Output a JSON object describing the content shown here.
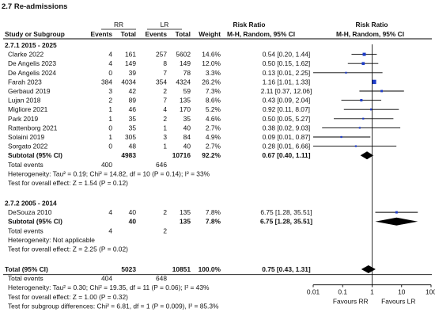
{
  "figure_title": "2.7 Re-admissions",
  "headers": {
    "rr": "RR",
    "lr": "LR",
    "rr_col": "Risk Ratio",
    "plot_col": "Risk Ratio",
    "study": "Study or Subgroup",
    "events": "Events",
    "total": "Total",
    "weight": "Weight",
    "method": "M-H, Random, 95% CI"
  },
  "chart_data": {
    "type": "forest",
    "title": "2.7 Re-admissions",
    "x_scale": "log",
    "x_ticks": [
      {
        "value": 0.01,
        "label": "0.01"
      },
      {
        "value": 0.1,
        "label": "0.1"
      },
      {
        "value": 1,
        "label": "1"
      },
      {
        "value": 10,
        "label": "10"
      },
      {
        "value": 100,
        "label": "100"
      }
    ],
    "favours_left": "Favours RR",
    "favours_right": "Favours LR",
    "subgroups": [
      {
        "label": "2.7.1 2015 - 2025",
        "studies": [
          {
            "study": "Clarke 2022",
            "rr_events": "4",
            "rr_total": "161",
            "lr_events": "257",
            "lr_total": "5602",
            "weight": "14.6%",
            "ci_text": "0.54 [0.20, 1.44]",
            "rr": 0.54,
            "lo": 0.2,
            "hi": 1.44
          },
          {
            "study": "De Angelis 2023",
            "rr_events": "4",
            "rr_total": "149",
            "lr_events": "8",
            "lr_total": "149",
            "weight": "12.0%",
            "ci_text": "0.50 [0.15, 1.62]",
            "rr": 0.5,
            "lo": 0.15,
            "hi": 1.62
          },
          {
            "study": "De Angelis 2024",
            "rr_events": "0",
            "rr_total": "39",
            "lr_events": "7",
            "lr_total": "78",
            "weight": "3.3%",
            "ci_text": "0.13 [0.01, 2.25]",
            "rr": 0.13,
            "lo": 0.01,
            "hi": 2.25
          },
          {
            "study": "Farah 2023",
            "rr_events": "384",
            "rr_total": "4034",
            "lr_events": "354",
            "lr_total": "4324",
            "weight": "26.2%",
            "ci_text": "1.16 [1.01, 1.33]",
            "rr": 1.16,
            "lo": 1.01,
            "hi": 1.33
          },
          {
            "study": "Gerbaud 2019",
            "rr_events": "3",
            "rr_total": "42",
            "lr_events": "2",
            "lr_total": "59",
            "weight": "7.3%",
            "ci_text": "2.11 [0.37, 12.06]",
            "rr": 2.11,
            "lo": 0.37,
            "hi": 12.06
          },
          {
            "study": "Lujan 2018",
            "rr_events": "2",
            "rr_total": "89",
            "lr_events": "7",
            "lr_total": "135",
            "weight": "8.6%",
            "ci_text": "0.43 [0.09, 2.04]",
            "rr": 0.43,
            "lo": 0.09,
            "hi": 2.04
          },
          {
            "study": "Migliore 2021",
            "rr_events": "1",
            "rr_total": "46",
            "lr_events": "4",
            "lr_total": "170",
            "weight": "5.2%",
            "ci_text": "0.92 [0.11, 8.07]",
            "rr": 0.92,
            "lo": 0.11,
            "hi": 8.07
          },
          {
            "study": "Park 2019",
            "rr_events": "1",
            "rr_total": "35",
            "lr_events": "2",
            "lr_total": "35",
            "weight": "4.6%",
            "ci_text": "0.50 [0.05, 5.27]",
            "rr": 0.5,
            "lo": 0.05,
            "hi": 5.27
          },
          {
            "study": "Rattenborg 2021",
            "rr_events": "0",
            "rr_total": "35",
            "lr_events": "1",
            "lr_total": "40",
            "weight": "2.7%",
            "ci_text": "0.38 [0.02, 9.03]",
            "rr": 0.38,
            "lo": 0.02,
            "hi": 9.03
          },
          {
            "study": "Solaini 2019",
            "rr_events": "1",
            "rr_total": "305",
            "lr_events": "3",
            "lr_total": "84",
            "weight": "4.9%",
            "ci_text": "0.09 [0.01, 0.87]",
            "rr": 0.09,
            "lo": 0.01,
            "hi": 0.87
          },
          {
            "study": "Sorgato 2022",
            "rr_events": "0",
            "rr_total": "48",
            "lr_events": "1",
            "lr_total": "40",
            "weight": "2.7%",
            "ci_text": "0.28 [0.01, 6.66]",
            "rr": 0.28,
            "lo": 0.01,
            "hi": 6.66
          }
        ],
        "subtotal": {
          "label": "Subtotal (95% CI)",
          "rr_total": "4983",
          "lr_total": "10716",
          "weight": "92.2%",
          "ci_text": "0.67 [0.40, 1.11]",
          "rr": 0.67,
          "lo": 0.4,
          "hi": 1.11
        },
        "total_events": {
          "label": "Total events",
          "rr": "400",
          "lr": "646"
        },
        "heterogeneity": "Heterogeneity: Tau² = 0.19; Chi² = 14.82, df = 10 (P = 0.14); I² = 33%",
        "overall_effect": "Test for overall effect: Z = 1.54 (P = 0.12)"
      },
      {
        "label": "2.7.2 2005 - 2014",
        "studies": [
          {
            "study": "DeSouza 2010",
            "rr_events": "4",
            "rr_total": "40",
            "lr_events": "2",
            "lr_total": "135",
            "weight": "7.8%",
            "ci_text": "6.75 [1.28, 35.51]",
            "rr": 6.75,
            "lo": 1.28,
            "hi": 35.51
          }
        ],
        "subtotal": {
          "label": "Subtotal (95% CI)",
          "rr_total": "40",
          "lr_total": "135",
          "weight": "7.8%",
          "ci_text": "6.75 [1.28, 35.51]",
          "rr": 6.75,
          "lo": 1.28,
          "hi": 35.51
        },
        "total_events": {
          "label": "Total events",
          "rr": "4",
          "lr": "2"
        },
        "heterogeneity": "Heterogeneity: Not applicable",
        "overall_effect": "Test for overall effect: Z = 2.25 (P = 0.02)"
      }
    ],
    "overall": {
      "label": "Total (95% CI)",
      "rr_total": "5023",
      "lr_total": "10851",
      "weight": "100.0%",
      "ci_text": "0.75 [0.43, 1.31]",
      "rr": 0.75,
      "lo": 0.43,
      "hi": 1.31,
      "total_events": {
        "label": "Total events",
        "rr": "404",
        "lr": "648"
      },
      "heterogeneity": "Heterogeneity: Tau² = 0.30; Chi² = 19.35, df = 11 (P = 0.06); I² = 43%",
      "overall_effect": "Test for overall effect: Z = 1.00 (P = 0.32)",
      "subgroup_differences": "Test for subgroup differences: Chi² = 6.81, df = 1 (P = 0.009), I² = 85.3%"
    }
  },
  "colors": {
    "study_marker": "#1f3dc9",
    "diamond": "#000000",
    "line": "#000000"
  }
}
